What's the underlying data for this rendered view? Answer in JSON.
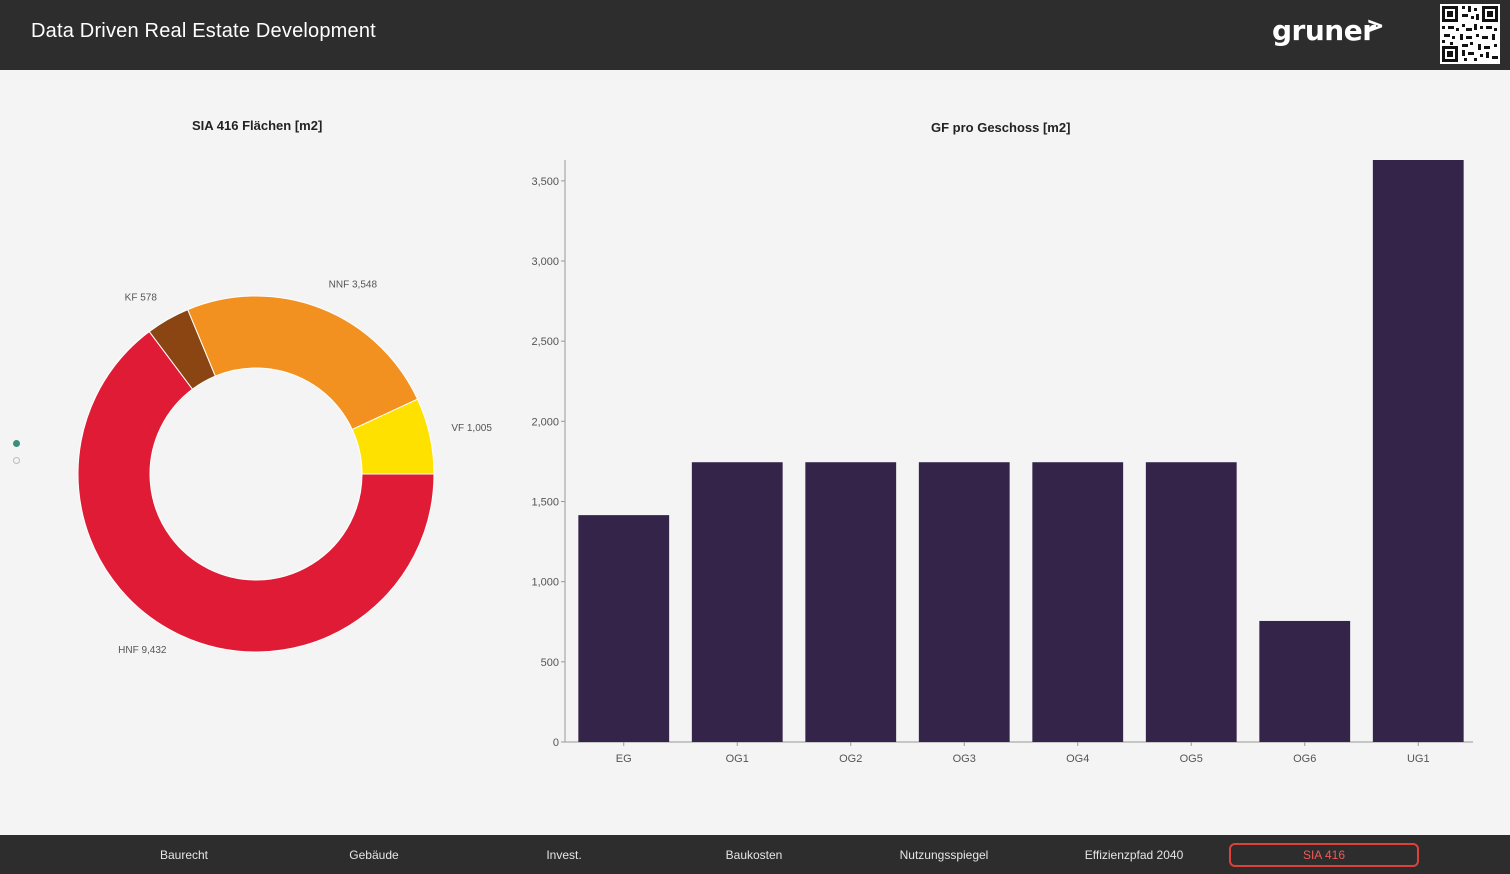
{
  "header": {
    "title": "Data Driven Real Estate Development",
    "logo_text": "gruner",
    "logo_mark": ">"
  },
  "colors": {
    "header_bg": "#2d2d2d",
    "bar": "#35244a",
    "active_nav": "#e0403a"
  },
  "pager": {
    "pages": 2,
    "active": 1
  },
  "chart_data": [
    {
      "type": "pie",
      "title": "SIA 416 Flächen [m2]",
      "donut": true,
      "slices": [
        {
          "label": "HNF",
          "value": 9432,
          "display": "HNF 9,432",
          "color": "#e01b35"
        },
        {
          "label": "KF",
          "value": 578,
          "display": "KF 578",
          "color": "#8b4513"
        },
        {
          "label": "NNF",
          "value": 3548,
          "display": "NNF 3,548",
          "color": "#f39120"
        },
        {
          "label": "VF",
          "value": 1005,
          "display": "VF 1,005",
          "color": "#ffe100"
        }
      ]
    },
    {
      "type": "bar",
      "title": "GF pro Geschoss [m2]",
      "categories": [
        "EG",
        "OG1",
        "OG2",
        "OG3",
        "OG4",
        "OG5",
        "OG6",
        "UG1"
      ],
      "values": [
        1415,
        1745,
        1745,
        1745,
        1745,
        1745,
        755,
        3630
      ],
      "ylim": [
        0,
        3630
      ],
      "yticks": [
        0,
        500,
        1000,
        1500,
        2000,
        2500,
        3000,
        3500
      ],
      "ytick_labels": [
        "0",
        "500",
        "1,000",
        "1,500",
        "2,000",
        "2,500",
        "3,000",
        "3,500"
      ],
      "color": "#35244a"
    }
  ],
  "nav": {
    "items": [
      {
        "label": "Baurecht",
        "active": false
      },
      {
        "label": "Gebäude",
        "active": false
      },
      {
        "label": "Invest.",
        "active": false
      },
      {
        "label": "Baukosten",
        "active": false
      },
      {
        "label": "Nutzungsspiegel",
        "active": false
      },
      {
        "label": "Effizienzpfad 2040",
        "active": false
      },
      {
        "label": "SIA 416",
        "active": true
      }
    ]
  }
}
